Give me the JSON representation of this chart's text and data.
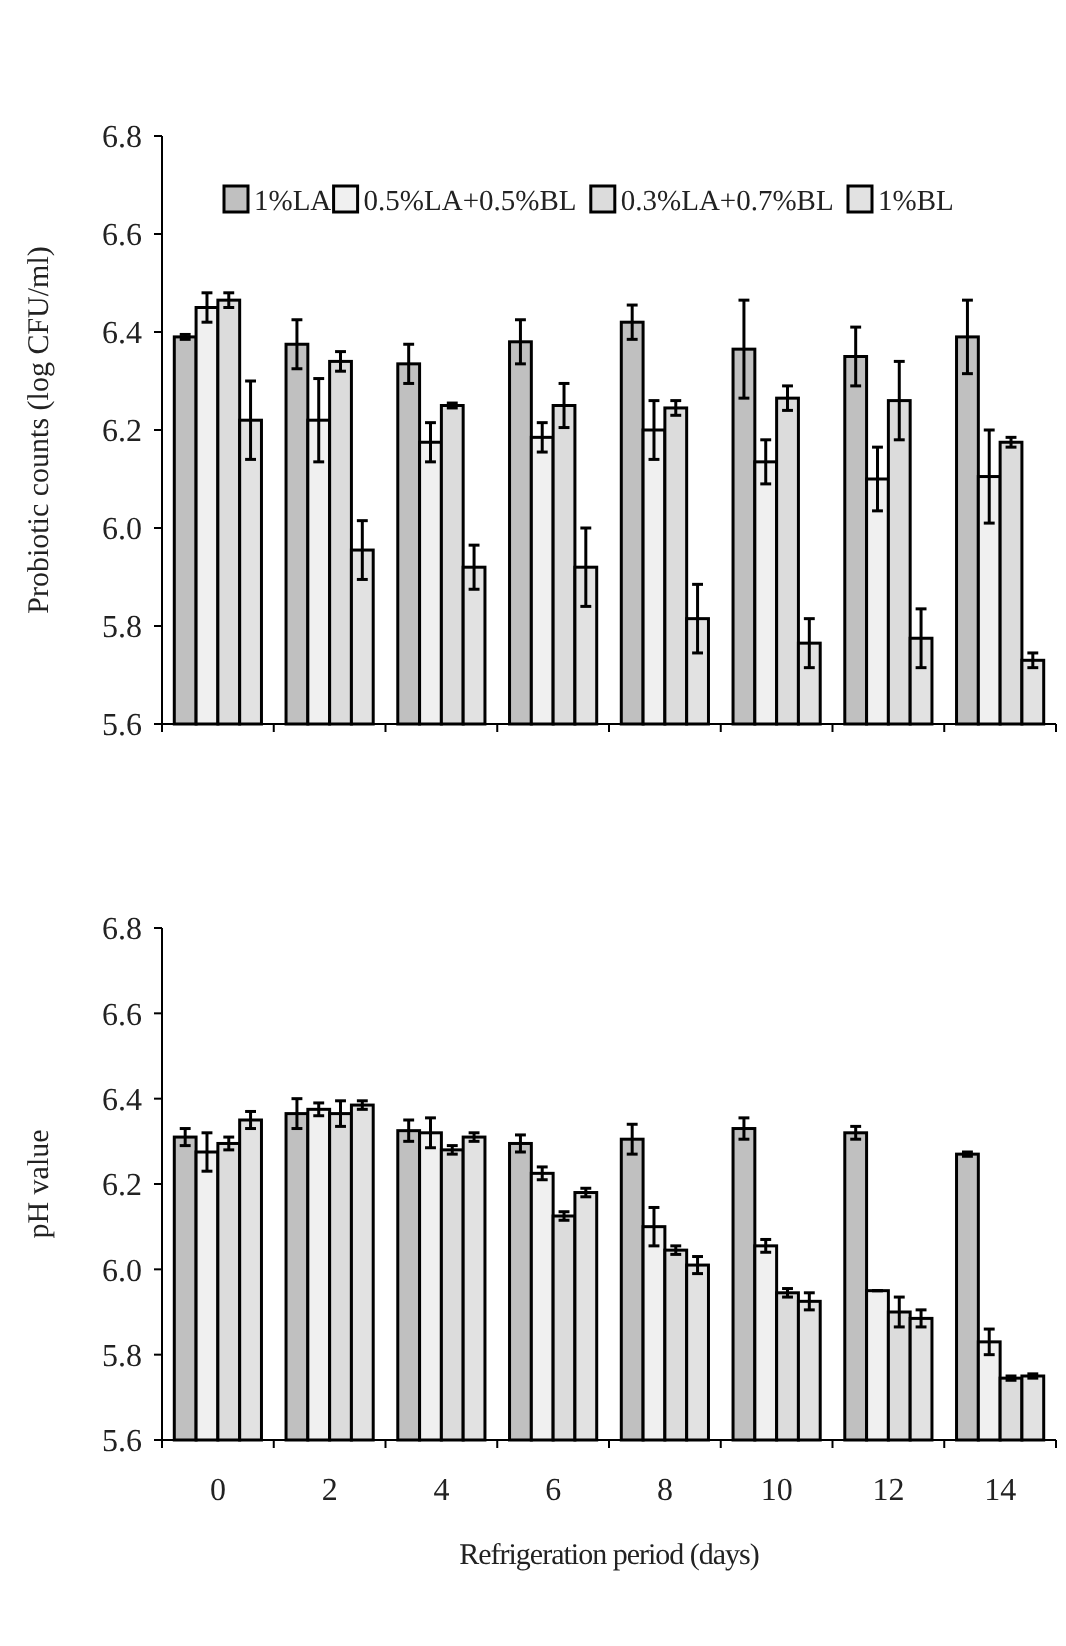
{
  "chart_data": [
    {
      "type": "bar",
      "ylabel": "Probiotic counts (log CFU/ml)",
      "categories": [
        null,
        null,
        null,
        null,
        null,
        null,
        null,
        null
      ],
      "ylim": [
        5.6,
        6.8
      ],
      "yticks": [
        5.6,
        5.8,
        {
          "value": 6.0,
          "label": "6.0"
        },
        6.2,
        6.4,
        6.6,
        6.8
      ],
      "legend": "top",
      "grid": false,
      "series": [
        {
          "name": "1%LA",
          "color": "#c0c0c0",
          "values": [
            6.39,
            6.375,
            6.335,
            6.38,
            6.42,
            6.365,
            6.35,
            6.39
          ],
          "errors": [
            0.005,
            0.05,
            0.04,
            0.045,
            0.035,
            0.1,
            0.06,
            0.075
          ]
        },
        {
          "name": "0.5%LA+0.5%BL",
          "color": "#f0f0f0",
          "values": [
            6.45,
            6.22,
            6.175,
            6.185,
            6.2,
            6.135,
            6.1,
            6.105
          ],
          "errors": [
            0.03,
            0.085,
            0.04,
            0.03,
            0.06,
            0.045,
            0.065,
            0.095
          ]
        },
        {
          "name": "0.3%LA+0.7%BL",
          "color": "#dcdcdc",
          "values": [
            6.465,
            6.34,
            6.25,
            6.25,
            6.245,
            6.265,
            6.26,
            6.175
          ],
          "errors": [
            0.015,
            0.02,
            0.005,
            0.045,
            0.015,
            0.025,
            0.08,
            0.01
          ]
        },
        {
          "name": "1%BL",
          "color": "#e2e2e2",
          "values": [
            6.22,
            5.955,
            5.92,
            5.92,
            5.815,
            5.765,
            5.775,
            5.73
          ],
          "errors": [
            0.08,
            0.06,
            0.045,
            0.08,
            0.07,
            0.05,
            0.06,
            0.015
          ]
        }
      ]
    },
    {
      "type": "bar",
      "ylabel": "pH value",
      "xlabel": "Refrigeration period (days)",
      "categories": [
        "0",
        "2",
        "4",
        "6",
        "8",
        "10",
        "12",
        "14"
      ],
      "ylim": [
        5.6,
        6.8
      ],
      "yticks": [
        5.6,
        5.8,
        {
          "value": 6.0,
          "label": "6.0"
        },
        6.2,
        6.4,
        6.6,
        6.8
      ],
      "grid": false,
      "series": [
        {
          "color": "#c0c0c0",
          "values": [
            6.31,
            6.365,
            6.325,
            6.295,
            6.305,
            6.33,
            6.32,
            6.27
          ],
          "errors": [
            0.02,
            0.035,
            0.025,
            0.02,
            0.035,
            0.025,
            0.015,
            0.005
          ]
        },
        {
          "color": "#f0f0f0",
          "values": [
            6.275,
            6.375,
            6.32,
            6.225,
            6.1,
            6.055,
            5.95,
            5.83
          ],
          "errors": [
            0.045,
            0.015,
            0.035,
            0.015,
            0.045,
            0.015,
            0,
            0.03
          ]
        },
        {
          "color": "#dcdcdc",
          "values": [
            6.295,
            6.365,
            6.28,
            6.125,
            6.045,
            5.945,
            5.9,
            5.745
          ],
          "errors": [
            0.015,
            0.03,
            0.01,
            0.01,
            0.01,
            0.01,
            0.035,
            0.005
          ]
        },
        {
          "color": "#e2e2e2",
          "values": [
            6.35,
            6.385,
            6.31,
            6.18,
            6.01,
            5.925,
            5.885,
            5.75
          ],
          "errors": [
            0.02,
            0.01,
            0.01,
            0.01,
            0.02,
            0.02,
            0.02,
            0.005
          ]
        }
      ]
    }
  ]
}
